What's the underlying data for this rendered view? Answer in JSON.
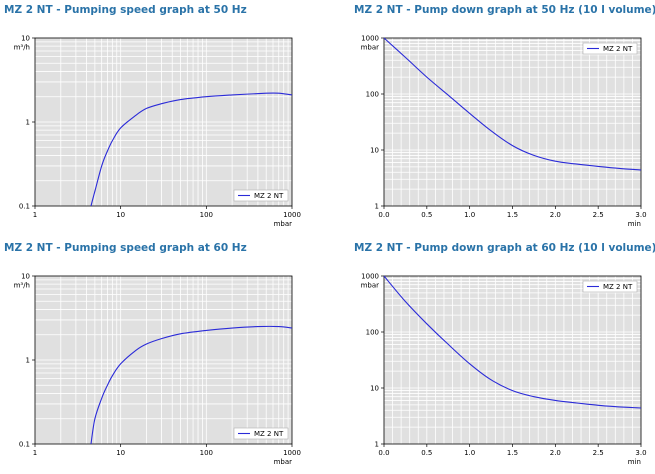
{
  "colors": {
    "plot_bg": "#e0e0e0",
    "grid": "#ffffff",
    "line": "#2b2bd8",
    "title": "#2a73a8"
  },
  "chart_data": [
    {
      "type": "line",
      "title": "MZ 2 NT - Pumping speed graph at 50 Hz",
      "xlabel": "mbar",
      "ylabel": "m³/h",
      "xscale": "log",
      "yscale": "log",
      "xlim": [
        1,
        1000
      ],
      "ylim": [
        0.1,
        10
      ],
      "xticks": [
        {
          "v": 1,
          "label": "1"
        },
        {
          "v": 10,
          "label": "10"
        },
        {
          "v": 100,
          "label": "100"
        },
        {
          "v": 1000,
          "label": "1000"
        }
      ],
      "yticks": [
        {
          "v": 0.1,
          "label": "0.1"
        },
        {
          "v": 1,
          "label": "1"
        },
        {
          "v": 10,
          "label": "10"
        }
      ],
      "grid": true,
      "legend_position": "bottom-right",
      "series": [
        {
          "name": "MZ 2 NT",
          "x": [
            4.5,
            5,
            6,
            7,
            8,
            10,
            15,
            20,
            30,
            50,
            100,
            200,
            500,
            700,
            1000
          ],
          "y": [
            0.1,
            0.15,
            0.3,
            0.45,
            0.6,
            0.85,
            1.2,
            1.45,
            1.65,
            1.85,
            2.0,
            2.1,
            2.2,
            2.2,
            2.1
          ]
        }
      ]
    },
    {
      "type": "line",
      "title": "MZ 2 NT - Pump down graph at 50 Hz (10 l volume)",
      "xlabel": "min",
      "ylabel": "mbar",
      "xscale": "linear",
      "yscale": "log",
      "xlim": [
        0,
        3
      ],
      "ylim": [
        1,
        1000
      ],
      "xticks": [
        {
          "v": 0,
          "label": "0.0"
        },
        {
          "v": 0.5,
          "label": "0.5"
        },
        {
          "v": 1,
          "label": "1.0"
        },
        {
          "v": 1.5,
          "label": "1.5"
        },
        {
          "v": 2,
          "label": "2.0"
        },
        {
          "v": 2.5,
          "label": "2.5"
        },
        {
          "v": 3,
          "label": "3.0"
        }
      ],
      "yticks": [
        {
          "v": 1,
          "label": "1"
        },
        {
          "v": 10,
          "label": "10"
        },
        {
          "v": 100,
          "label": "100"
        },
        {
          "v": 1000,
          "label": "1000"
        }
      ],
      "grid": true,
      "legend_position": "top-right",
      "series": [
        {
          "name": "MZ 2 NT",
          "x": [
            0,
            0.25,
            0.5,
            0.75,
            1.0,
            1.25,
            1.5,
            1.75,
            2.0,
            2.25,
            2.5,
            2.75,
            3.0
          ],
          "y": [
            1000,
            450,
            200,
            95,
            45,
            22,
            12,
            8.0,
            6.3,
            5.6,
            5.1,
            4.7,
            4.4
          ]
        }
      ]
    },
    {
      "type": "line",
      "title": "MZ 2 NT - Pumping speed graph at 60 Hz",
      "xlabel": "mbar",
      "ylabel": "m³/h",
      "xscale": "log",
      "yscale": "log",
      "xlim": [
        1,
        1000
      ],
      "ylim": [
        0.1,
        10
      ],
      "xticks": [
        {
          "v": 1,
          "label": "1"
        },
        {
          "v": 10,
          "label": "10"
        },
        {
          "v": 100,
          "label": "100"
        },
        {
          "v": 1000,
          "label": "1000"
        }
      ],
      "yticks": [
        {
          "v": 0.1,
          "label": "0.1"
        },
        {
          "v": 1,
          "label": "1"
        },
        {
          "v": 10,
          "label": "10"
        }
      ],
      "grid": true,
      "legend_position": "bottom-right",
      "series": [
        {
          "name": "MZ 2 NT",
          "x": [
            4.5,
            5,
            6,
            7,
            8,
            10,
            15,
            20,
            30,
            50,
            100,
            200,
            400,
            700,
            1000
          ],
          "y": [
            0.1,
            0.2,
            0.35,
            0.5,
            0.65,
            0.9,
            1.3,
            1.55,
            1.8,
            2.05,
            2.25,
            2.4,
            2.5,
            2.5,
            2.4
          ]
        }
      ]
    },
    {
      "type": "line",
      "title": "MZ 2 NT - Pump down graph at 60 Hz (10 l volume)",
      "xlabel": "min",
      "ylabel": "mbar",
      "xscale": "linear",
      "yscale": "log",
      "xlim": [
        0,
        3
      ],
      "ylim": [
        1,
        1000
      ],
      "xticks": [
        {
          "v": 0,
          "label": "0.0"
        },
        {
          "v": 0.5,
          "label": "0.5"
        },
        {
          "v": 1,
          "label": "1.0"
        },
        {
          "v": 1.5,
          "label": "1.5"
        },
        {
          "v": 2,
          "label": "2.0"
        },
        {
          "v": 2.5,
          "label": "2.5"
        },
        {
          "v": 3,
          "label": "3.0"
        }
      ],
      "yticks": [
        {
          "v": 1,
          "label": "1"
        },
        {
          "v": 10,
          "label": "10"
        },
        {
          "v": 100,
          "label": "100"
        },
        {
          "v": 1000,
          "label": "1000"
        }
      ],
      "grid": true,
      "legend_position": "top-right",
      "series": [
        {
          "name": "MZ 2 NT",
          "x": [
            0,
            0.25,
            0.5,
            0.75,
            1.0,
            1.25,
            1.5,
            1.75,
            2.0,
            2.25,
            2.5,
            2.75,
            3.0
          ],
          "y": [
            1000,
            350,
            140,
            60,
            27,
            14,
            9.0,
            7.0,
            6.0,
            5.4,
            4.9,
            4.6,
            4.4
          ]
        }
      ]
    }
  ]
}
